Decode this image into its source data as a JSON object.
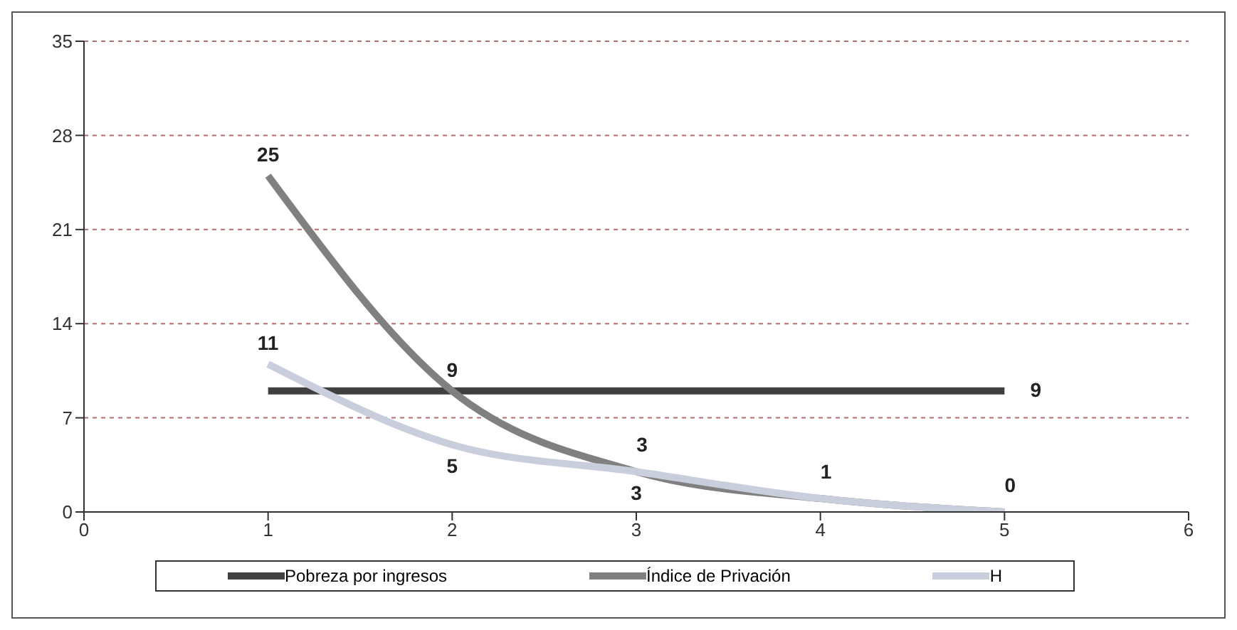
{
  "chart_data": {
    "type": "line",
    "x": [
      1,
      2,
      3,
      4,
      5
    ],
    "series": [
      {
        "name": "Pobreza por ingresos",
        "color": "#404040",
        "values": [
          9,
          9,
          9,
          9,
          9
        ],
        "value_labels": [
          null,
          null,
          null,
          null,
          "9"
        ]
      },
      {
        "name": "Índice de Privación",
        "color": "#808080",
        "values": [
          25,
          9,
          3,
          1,
          0
        ],
        "value_labels": [
          "25",
          "9",
          "3",
          "1",
          "0"
        ]
      },
      {
        "name": "H",
        "color": "#c8cedb",
        "values": [
          11,
          5,
          3,
          1,
          0
        ],
        "value_labels": [
          "11",
          "5",
          "3",
          null,
          null
        ]
      }
    ],
    "xlim": [
      0,
      6
    ],
    "xticks": [
      0,
      1,
      2,
      3,
      4,
      5,
      6
    ],
    "ylim": [
      0,
      35
    ],
    "yticks": [
      0,
      7,
      14,
      21,
      28,
      35
    ],
    "grid": "y",
    "legend": "bottom",
    "marker": "none",
    "line_style": "solid"
  }
}
